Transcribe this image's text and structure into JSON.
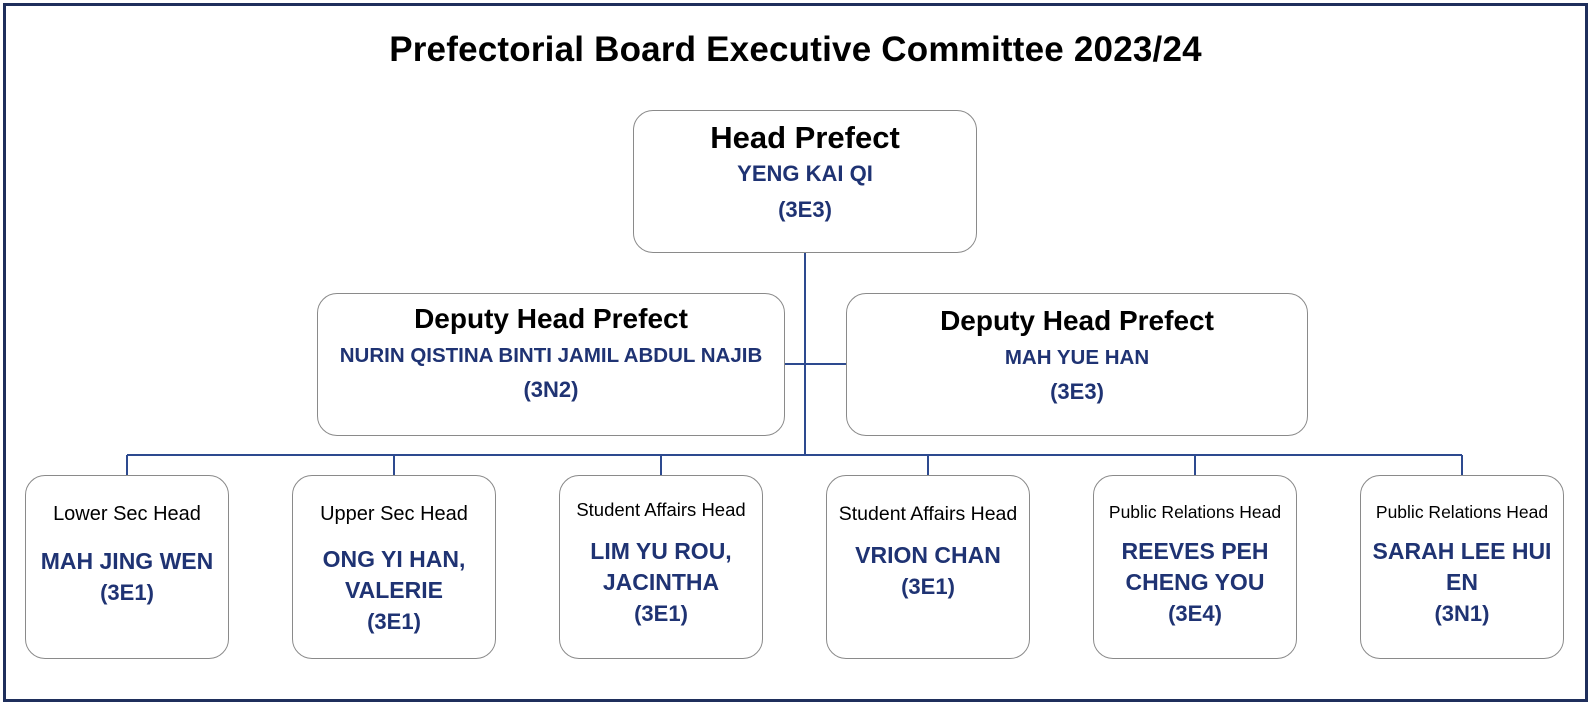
{
  "title": "Prefectorial Board Executive Committee 2023/24",
  "colors": {
    "frame": "#1f2f5c",
    "connector": "#2d4a8f",
    "name_text": "#1f3373",
    "box_border": "#8a8a8a"
  },
  "head_prefect": {
    "role": "Head Prefect",
    "name": "YENG KAI QI",
    "class": "(3E3)"
  },
  "deputies": [
    {
      "role": "Deputy Head Prefect",
      "name": "NURIN QISTINA BINTI JAMIL ABDUL NAJIB",
      "class": "(3N2)"
    },
    {
      "role": "Deputy Head Prefect",
      "name": "MAH YUE HAN",
      "class": "(3E3)"
    }
  ],
  "heads": [
    {
      "role": "Lower Sec Head",
      "name": "MAH JING WEN",
      "class": "(3E1)"
    },
    {
      "role": "Upper Sec Head",
      "name": "ONG YI HAN, VALERIE",
      "class": "(3E1)"
    },
    {
      "role": "Student Affairs Head",
      "name": "LIM YU ROU, JACINTHA",
      "class": "(3E1)"
    },
    {
      "role": "Student Affairs Head",
      "name": "VRION CHAN",
      "class": "(3E1)"
    },
    {
      "role": "Public Relations Head",
      "name": "REEVES PEH CHENG YOU",
      "class": "(3E4)"
    },
    {
      "role": "Public Relations Head",
      "name": "SARAH LEE HUI EN",
      "class": "(3N1)"
    }
  ]
}
